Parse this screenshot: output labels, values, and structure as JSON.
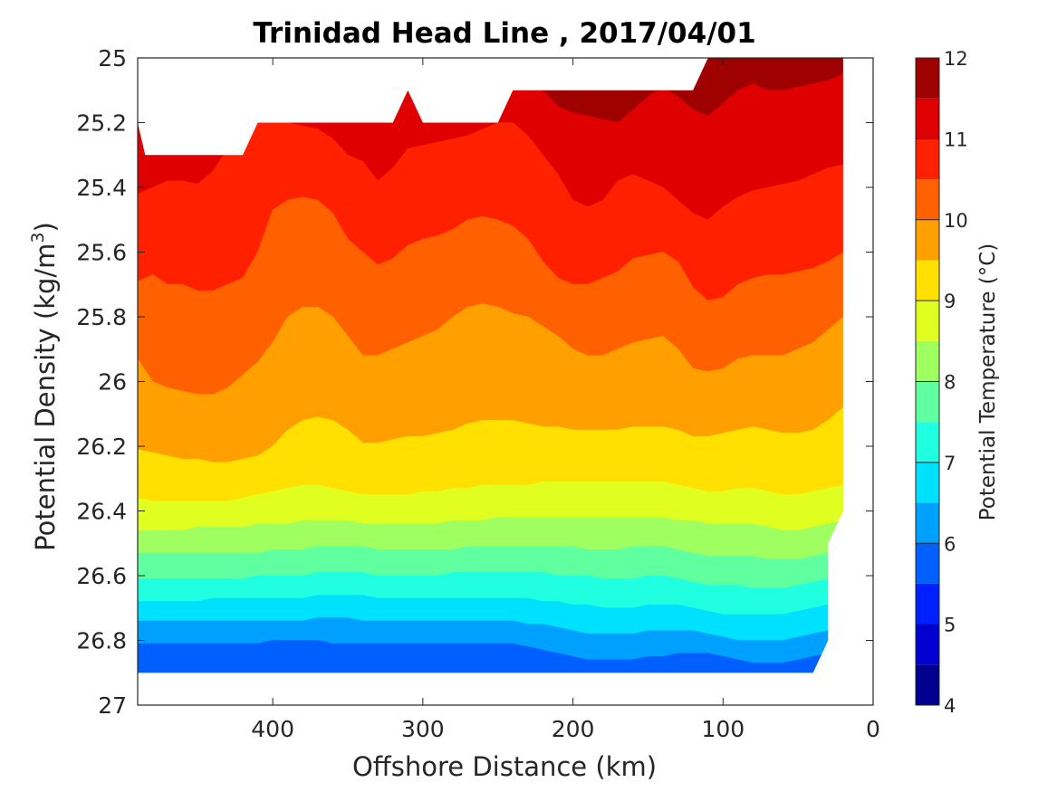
{
  "chart_data": {
    "type": "filled-contour",
    "title": "Trinidad Head Line , 2017/04/01",
    "xlabel": "Offshore Distance (km)",
    "ylabel_main": "Potential Density (kg/m",
    "ylabel_sup": "3",
    "ylabel_close": ")",
    "xlim": [
      490,
      0
    ],
    "ylim": [
      25,
      27
    ],
    "y_reversed": true,
    "x_reversed": true,
    "xticks": [
      400,
      300,
      200,
      100,
      0
    ],
    "xtick_labels": [
      "400",
      "300",
      "200",
      "100",
      "0"
    ],
    "yticks": [
      25,
      25.2,
      25.4,
      25.6,
      25.8,
      26,
      26.2,
      26.4,
      26.6,
      26.8,
      27
    ],
    "ytick_labels": [
      "25",
      "25.2",
      "25.4",
      "25.6",
      "25.8",
      "26",
      "26.2",
      "26.4",
      "26.6",
      "26.8",
      "27"
    ],
    "colorbar": {
      "label": "Potential Temperature (°C)",
      "range": [
        4,
        12
      ],
      "ticks": [
        4,
        5,
        6,
        7,
        8,
        9,
        10,
        11,
        12
      ],
      "tick_labels": [
        "4",
        "5",
        "6",
        "7",
        "8",
        "9",
        "10",
        "11",
        "12"
      ],
      "levels": [
        4,
        4.5,
        5,
        5.5,
        6,
        6.5,
        7,
        7.5,
        8,
        8.5,
        9,
        9.5,
        10,
        10.5,
        11,
        11.5,
        12
      ],
      "colors": [
        "#00008f",
        "#0000d0",
        "#0020ff",
        "#0060ff",
        "#00a0ff",
        "#00e0ff",
        "#20ffdf",
        "#60ff9f",
        "#a0ff60",
        "#e0ff20",
        "#ffe000",
        "#ffa000",
        "#ff6000",
        "#ff2000",
        "#df0000",
        "#9f0000"
      ]
    },
    "data_coverage": {
      "top_edge": [
        [
          490,
          25.2
        ],
        [
          485,
          25.3
        ],
        [
          420,
          25.3
        ],
        [
          410,
          25.2
        ],
        [
          320,
          25.2
        ],
        [
          310,
          25.1
        ],
        [
          300,
          25.2
        ],
        [
          250,
          25.2
        ],
        [
          240,
          25.1
        ],
        [
          120,
          25.1
        ],
        [
          110,
          25.0
        ],
        [
          20,
          25.0
        ]
      ],
      "right_edge": [
        [
          20,
          26.4
        ],
        [
          30,
          26.5
        ],
        [
          30,
          26.8
        ],
        [
          40,
          26.9
        ]
      ],
      "bottom_edge": [
        [
          490,
          26.9
        ]
      ]
    },
    "isotherms": {
      "x": [
        490,
        480,
        470,
        460,
        450,
        440,
        430,
        420,
        410,
        400,
        390,
        380,
        370,
        360,
        350,
        340,
        330,
        320,
        310,
        300,
        290,
        280,
        270,
        260,
        250,
        240,
        230,
        220,
        210,
        200,
        190,
        180,
        170,
        160,
        150,
        140,
        130,
        120,
        110,
        100,
        90,
        80,
        70,
        60,
        50,
        40,
        30,
        20
      ],
      "lines": [
        {
          "t": 11.5,
          "y": [
            null,
            null,
            null,
            null,
            null,
            null,
            null,
            null,
            null,
            null,
            null,
            null,
            null,
            null,
            null,
            null,
            null,
            null,
            null,
            null,
            null,
            null,
            null,
            null,
            null,
            null,
            null,
            25.1,
            25.15,
            25.17,
            25.18,
            25.19,
            25.2,
            25.16,
            25.12,
            25.09,
            25.12,
            25.16,
            25.18,
            25.14,
            25.1,
            25.08,
            25.1,
            25.1,
            25.09,
            25.08,
            25.07,
            25.05
          ]
        },
        {
          "t": 11.0,
          "y": [
            25.42,
            25.4,
            25.38,
            25.38,
            25.39,
            25.35,
            25.28,
            25.22,
            25.2,
            25.2,
            25.2,
            25.21,
            25.22,
            25.25,
            25.3,
            25.32,
            25.38,
            25.34,
            25.28,
            25.27,
            25.26,
            25.25,
            25.24,
            25.22,
            25.2,
            25.2,
            25.24,
            25.3,
            25.36,
            25.44,
            25.46,
            25.44,
            25.38,
            25.36,
            25.38,
            25.4,
            25.44,
            25.48,
            25.5,
            25.46,
            25.43,
            25.41,
            25.4,
            25.39,
            25.38,
            25.36,
            25.34,
            25.33
          ]
        },
        {
          "t": 10.5,
          "y": [
            25.69,
            25.67,
            25.7,
            25.7,
            25.72,
            25.72,
            25.7,
            25.68,
            25.6,
            25.47,
            25.44,
            25.43,
            25.44,
            25.48,
            25.56,
            25.6,
            25.64,
            25.62,
            25.58,
            25.56,
            25.55,
            25.53,
            25.5,
            25.49,
            25.5,
            25.52,
            25.56,
            25.63,
            25.68,
            25.7,
            25.7,
            25.68,
            25.66,
            25.62,
            25.61,
            25.6,
            25.63,
            25.71,
            25.75,
            25.74,
            25.7,
            25.68,
            25.67,
            25.67,
            25.66,
            25.65,
            25.63,
            25.6
          ]
        },
        {
          "t": 10.0,
          "y": [
            25.93,
            26.0,
            26.02,
            26.03,
            26.04,
            26.04,
            26.02,
            25.98,
            25.94,
            25.88,
            25.8,
            25.77,
            25.77,
            25.8,
            25.86,
            25.92,
            25.92,
            25.9,
            25.88,
            25.86,
            25.84,
            25.8,
            25.77,
            25.76,
            25.77,
            25.79,
            25.8,
            25.83,
            25.86,
            25.9,
            25.92,
            25.92,
            25.9,
            25.88,
            25.87,
            25.86,
            25.9,
            25.96,
            25.97,
            25.96,
            25.93,
            25.92,
            25.92,
            25.92,
            25.9,
            25.88,
            25.84,
            25.8
          ]
        },
        {
          "t": 9.5,
          "y": [
            26.21,
            26.22,
            26.23,
            26.24,
            26.24,
            26.25,
            26.25,
            26.24,
            26.23,
            26.2,
            26.15,
            26.12,
            26.11,
            26.12,
            26.15,
            26.19,
            26.19,
            26.18,
            26.17,
            26.17,
            26.16,
            26.15,
            26.13,
            26.12,
            26.12,
            26.12,
            26.13,
            26.14,
            26.14,
            26.15,
            26.15,
            26.15,
            26.15,
            26.14,
            26.14,
            26.14,
            26.15,
            26.17,
            26.17,
            26.16,
            26.15,
            26.14,
            26.15,
            26.16,
            26.16,
            26.15,
            26.12,
            26.08
          ]
        },
        {
          "t": 9.0,
          "y": [
            26.36,
            26.37,
            26.37,
            26.37,
            26.37,
            26.37,
            26.37,
            26.36,
            26.35,
            26.34,
            26.33,
            26.32,
            26.32,
            26.33,
            26.34,
            26.35,
            26.35,
            26.35,
            26.35,
            26.34,
            26.34,
            26.33,
            26.33,
            26.32,
            26.32,
            26.32,
            26.32,
            26.31,
            26.31,
            26.31,
            26.31,
            26.31,
            26.31,
            26.31,
            26.31,
            26.31,
            26.32,
            26.33,
            26.34,
            26.34,
            26.33,
            26.33,
            26.34,
            26.35,
            26.35,
            26.34,
            26.33,
            26.32
          ]
        },
        {
          "t": 8.5,
          "y": [
            26.46,
            26.46,
            26.46,
            26.46,
            26.45,
            26.45,
            26.45,
            26.45,
            26.44,
            26.44,
            26.44,
            26.43,
            26.43,
            26.43,
            26.43,
            26.44,
            26.44,
            26.44,
            26.44,
            26.44,
            26.44,
            26.43,
            26.43,
            26.43,
            26.42,
            26.42,
            26.42,
            26.42,
            26.42,
            26.42,
            26.42,
            26.42,
            26.42,
            26.42,
            26.42,
            26.42,
            26.43,
            26.43,
            26.44,
            26.44,
            26.44,
            26.44,
            26.45,
            26.46,
            26.46,
            26.45,
            26.44,
            26.43
          ]
        },
        {
          "t": 8.0,
          "y": [
            26.53,
            26.53,
            26.53,
            26.53,
            26.53,
            26.53,
            26.53,
            26.53,
            26.53,
            26.52,
            26.52,
            26.52,
            26.51,
            26.51,
            26.51,
            26.51,
            26.52,
            26.52,
            26.52,
            26.52,
            26.52,
            26.52,
            26.51,
            26.51,
            26.51,
            26.51,
            26.51,
            26.51,
            26.51,
            26.51,
            26.52,
            26.52,
            26.52,
            26.51,
            26.51,
            26.51,
            26.52,
            26.53,
            26.54,
            26.54,
            26.54,
            26.54,
            26.55,
            26.55,
            26.55,
            26.54,
            26.53,
            26.52
          ]
        },
        {
          "t": 7.5,
          "y": [
            26.61,
            26.61,
            26.61,
            26.61,
            26.61,
            26.61,
            26.61,
            26.61,
            26.6,
            26.6,
            26.6,
            26.6,
            26.59,
            26.59,
            26.59,
            26.59,
            26.6,
            26.6,
            26.6,
            26.6,
            26.6,
            26.59,
            26.59,
            26.59,
            26.59,
            26.59,
            26.59,
            26.59,
            26.6,
            26.6,
            26.6,
            26.61,
            26.61,
            26.61,
            26.6,
            26.6,
            26.61,
            26.62,
            26.63,
            26.63,
            26.63,
            26.64,
            26.64,
            26.64,
            26.63,
            26.62,
            26.61,
            26.6
          ]
        },
        {
          "t": 7.0,
          "y": [
            26.68,
            26.68,
            26.68,
            26.68,
            26.68,
            26.67,
            26.67,
            26.67,
            26.67,
            26.67,
            26.67,
            26.67,
            26.66,
            26.66,
            26.66,
            26.66,
            26.67,
            26.67,
            26.67,
            26.67,
            26.67,
            26.67,
            26.67,
            26.67,
            26.67,
            26.67,
            26.67,
            26.68,
            26.68,
            26.69,
            26.69,
            26.7,
            26.7,
            26.7,
            26.69,
            26.69,
            26.69,
            26.7,
            26.71,
            26.72,
            26.72,
            26.72,
            26.72,
            26.72,
            26.71,
            26.7,
            26.69,
            26.68
          ]
        },
        {
          "t": 6.5,
          "y": [
            26.74,
            26.74,
            26.74,
            26.74,
            26.74,
            26.74,
            26.74,
            26.74,
            26.74,
            26.74,
            26.74,
            26.74,
            26.73,
            26.73,
            26.73,
            26.74,
            26.74,
            26.74,
            26.74,
            26.74,
            26.74,
            26.74,
            26.74,
            26.74,
            26.74,
            26.74,
            26.75,
            26.75,
            26.76,
            26.77,
            26.78,
            26.78,
            26.78,
            26.78,
            26.77,
            26.77,
            26.77,
            26.77,
            26.78,
            26.79,
            26.8,
            26.8,
            26.8,
            26.8,
            26.79,
            26.78,
            26.77,
            26.76
          ]
        },
        {
          "t": 6.0,
          "y": [
            26.81,
            26.81,
            26.81,
            26.81,
            26.81,
            26.81,
            26.81,
            26.81,
            26.81,
            26.8,
            26.8,
            26.8,
            26.8,
            26.81,
            26.81,
            26.81,
            26.81,
            26.81,
            26.81,
            26.81,
            26.81,
            26.81,
            26.81,
            26.81,
            26.81,
            26.81,
            26.82,
            26.83,
            26.84,
            26.85,
            26.86,
            26.86,
            26.86,
            26.86,
            26.85,
            26.85,
            26.84,
            26.84,
            26.84,
            26.85,
            26.86,
            26.87,
            26.87,
            26.87,
            26.86,
            26.85,
            26.84,
            26.83
          ]
        },
        {
          "t": 5.5,
          "y": [
            26.9,
            26.9,
            26.9,
            26.9,
            26.9,
            26.9,
            26.9,
            26.9,
            26.9,
            26.9,
            26.9,
            26.9,
            26.9,
            26.9,
            26.9,
            26.9,
            26.9,
            26.9,
            26.9,
            26.9,
            26.9,
            26.9,
            26.9,
            26.9,
            26.9,
            26.9,
            26.9,
            26.9,
            26.9,
            26.9,
            26.9,
            26.9,
            26.9,
            26.9,
            26.9,
            26.9,
            26.9,
            26.9,
            26.9,
            26.9,
            26.9,
            26.9,
            26.9,
            26.9,
            26.9,
            26.9,
            26.9,
            26.9
          ]
        }
      ]
    }
  }
}
